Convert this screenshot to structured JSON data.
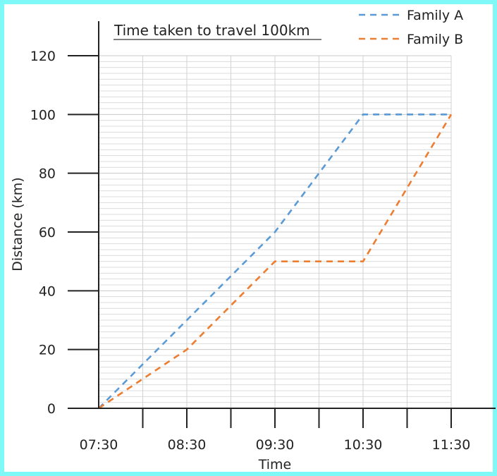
{
  "chart_data": {
    "type": "line",
    "title": "Time taken to travel 100km",
    "xlabel": "Time",
    "ylabel": "Distance (km)",
    "x_ticks": [
      "07:30",
      "08:30",
      "09:30",
      "10:30",
      "11:30"
    ],
    "x_values": [
      "07:30",
      "08:00",
      "08:30",
      "09:00",
      "09:30",
      "10:00",
      "10:30",
      "11:00",
      "11:30"
    ],
    "y_ticks": [
      0,
      20,
      40,
      60,
      80,
      100,
      120
    ],
    "ylim": [
      0,
      120
    ],
    "grid": true,
    "legend_position": "top-right",
    "series": [
      {
        "name": "Family A",
        "color": "#5B9BD5",
        "line_style": "dashed",
        "points": [
          [
            "07:30",
            0
          ],
          [
            "08:30",
            30
          ],
          [
            "09:30",
            60
          ],
          [
            "10:30",
            100
          ],
          [
            "11:30",
            100
          ]
        ]
      },
      {
        "name": "Family B",
        "color": "#ED7D31",
        "line_style": "dashed",
        "points": [
          [
            "07:30",
            0
          ],
          [
            "08:30",
            20
          ],
          [
            "09:30",
            50
          ],
          [
            "10:30",
            50
          ],
          [
            "11:30",
            100
          ]
        ]
      }
    ]
  }
}
